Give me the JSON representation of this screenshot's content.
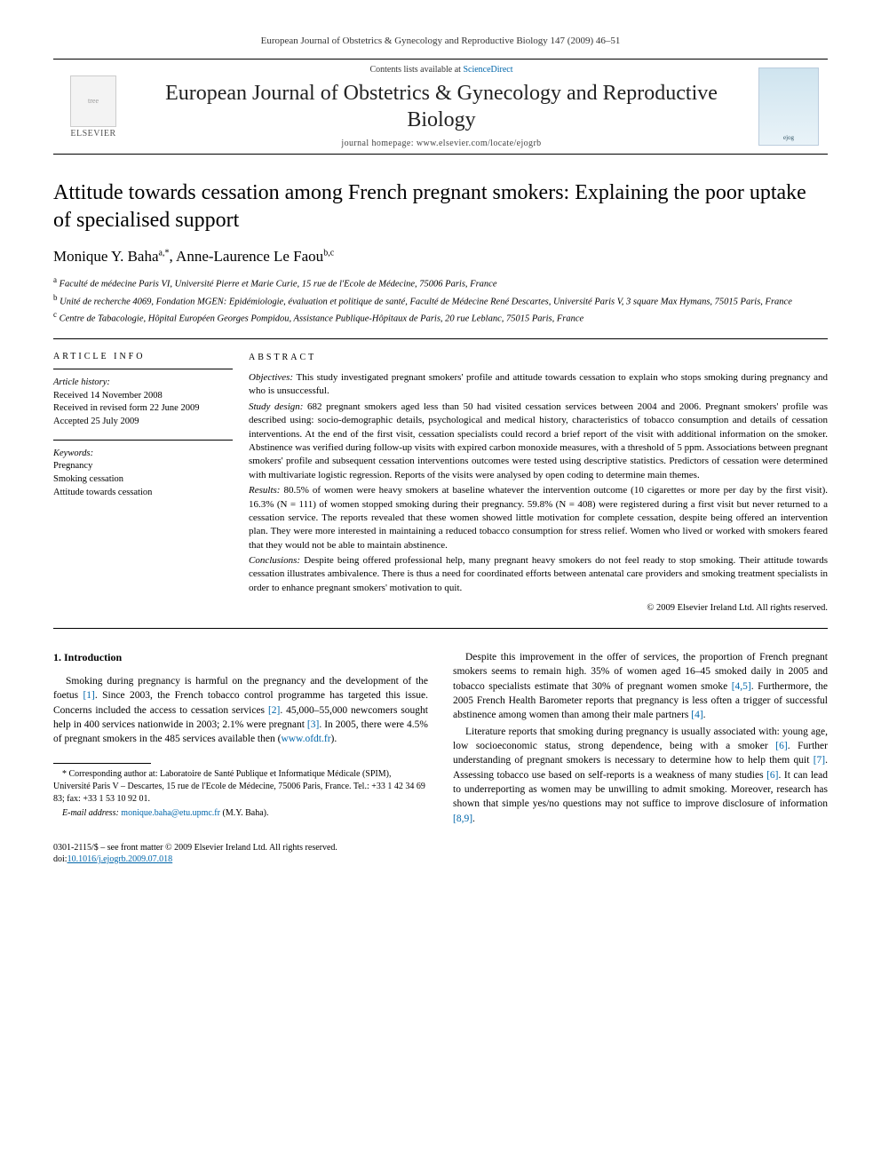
{
  "running_header": "European Journal of Obstetrics & Gynecology and Reproductive Biology 147 (2009) 46–51",
  "masthead": {
    "elsevier_label": "ELSEVIER",
    "contents_prefix": "Contents lists available at ",
    "contents_link": "ScienceDirect",
    "journal_name": "European Journal of Obstetrics & Gynecology and Reproductive Biology",
    "homepage_prefix": "journal homepage: ",
    "homepage_url": "www.elsevier.com/locate/ejogrb",
    "cover_caption": "ejog"
  },
  "title": "Attitude towards cessation among French pregnant smokers: Explaining the poor uptake of specialised support",
  "authors_html_parts": {
    "a1_name": "Monique Y. Baha",
    "a1_sup": "a,*",
    "sep": ", ",
    "a2_name": "Anne-Laurence Le Faou",
    "a2_sup": "b,c"
  },
  "affiliations": [
    {
      "sup": "a",
      "text": "Faculté de médecine Paris VI, Université Pierre et Marie Curie, 15 rue de l'Ecole de Médecine, 75006 Paris, France"
    },
    {
      "sup": "b",
      "text": "Unité de recherche 4069, Fondation MGEN: Epidémiologie, évaluation et politique de santé, Faculté de Médecine René Descartes, Université Paris V, 3 square Max Hymans, 75015 Paris, France"
    },
    {
      "sup": "c",
      "text": "Centre de Tabacologie, Hôpital Européen Georges Pompidou, Assistance Publique-Hôpitaux de Paris, 20 rue Leblanc, 75015 Paris, France"
    }
  ],
  "article_info": {
    "heading": "ARTICLE INFO",
    "history_label": "Article history:",
    "history": [
      "Received 14 November 2008",
      "Received in revised form 22 June 2009",
      "Accepted 25 July 2009"
    ],
    "keywords_label": "Keywords:",
    "keywords": [
      "Pregnancy",
      "Smoking cessation",
      "Attitude towards cessation"
    ]
  },
  "abstract": {
    "heading": "ABSTRACT",
    "segments": [
      {
        "label": "Objectives:",
        "text": "This study investigated pregnant smokers' profile and attitude towards cessation to explain who stops smoking during pregnancy and who is unsuccessful."
      },
      {
        "label": "Study design:",
        "text": "682 pregnant smokers aged less than 50 had visited cessation services between 2004 and 2006. Pregnant smokers' profile was described using: socio-demographic details, psychological and medical history, characteristics of tobacco consumption and details of cessation interventions. At the end of the first visit, cessation specialists could record a brief report of the visit with additional information on the smoker. Abstinence was verified during follow-up visits with expired carbon monoxide measures, with a threshold of 5 ppm. Associations between pregnant smokers' profile and subsequent cessation interventions outcomes were tested using descriptive statistics. Predictors of cessation were determined with multivariate logistic regression. Reports of the visits were analysed by open coding to determine main themes."
      },
      {
        "label": "Results:",
        "text": "80.5% of women were heavy smokers at baseline whatever the intervention outcome (10 cigarettes or more per day by the first visit). 16.3% (N = 111) of women stopped smoking during their pregnancy. 59.8% (N = 408) were registered during a first visit but never returned to a cessation service. The reports revealed that these women showed little motivation for complete cessation, despite being offered an intervention plan. They were more interested in maintaining a reduced tobacco consumption for stress relief. Women who lived or worked with smokers feared that they would not be able to maintain abstinence."
      },
      {
        "label": "Conclusions:",
        "text": "Despite being offered professional help, many pregnant heavy smokers do not feel ready to stop smoking. Their attitude towards cessation illustrates ambivalence. There is thus a need for coordinated efforts between antenatal care providers and smoking treatment specialists in order to enhance pregnant smokers' motivation to quit."
      }
    ],
    "copyright": "© 2009 Elsevier Ireland Ltd. All rights reserved."
  },
  "body": {
    "section1_heading": "1. Introduction",
    "p1_a": "Smoking during pregnancy is harmful on the pregnancy and the development of the foetus ",
    "p1_r1": "[1]",
    "p1_b": ". Since 2003, the French tobacco control programme has targeted this issue. Concerns included the access to cessation services ",
    "p1_r2": "[2]",
    "p1_c": ". 45,000–55,000 newcomers sought help in 400 services nationwide in 2003; 2.1% were pregnant ",
    "p1_r3": "[3]",
    "p1_d": ". In 2005, there were 4.5% of pregnant smokers in the 485 services available then (",
    "p1_url": "www.ofdt.fr",
    "p1_e": ").",
    "p2_a": "Despite this improvement in the offer of services, the proportion of French pregnant smokers seems to remain high. 35% of women aged 16–45 smoked daily in 2005 and tobacco specialists estimate that 30% of pregnant women smoke ",
    "p2_r1": "[4,5]",
    "p2_b": ". Furthermore, the 2005 French Health Barometer reports that pregnancy is less often a trigger of successful abstinence among women than among their male partners ",
    "p2_r2": "[4]",
    "p2_c": ".",
    "p3_a": "Literature reports that smoking during pregnancy is usually associated with: young age, low socioeconomic status, strong dependence, being with a smoker ",
    "p3_r1": "[6]",
    "p3_b": ". Further understanding of pregnant smokers is necessary to determine how to help them quit ",
    "p3_r2": "[7]",
    "p3_c": ". Assessing tobacco use based on self-reports is a weakness of many studies ",
    "p3_r3": "[6]",
    "p3_d": ". It can lead to underreporting as women may be unwilling to admit smoking. Moreover, research has shown that simple yes/no questions may not suffice to improve disclosure of information ",
    "p3_r4": "[8,9]",
    "p3_e": "."
  },
  "footnotes": {
    "corr_label": "* Corresponding author at: ",
    "corr_text": "Laboratoire de Santé Publique et Informatique Médicale (SPIM), Université Paris V – Descartes, 15 rue de l'Ecole de Médecine, 75006 Paris, France. Tel.: +33 1 42 34 69 83; fax: +33 1 53 10 92 01.",
    "email_label": "E-mail address: ",
    "email": "monique.baha@etu.upmc.fr",
    "email_suffix": " (M.Y. Baha)."
  },
  "footer": {
    "line1": "0301-2115/$ – see front matter © 2009 Elsevier Ireland Ltd. All rights reserved.",
    "doi_label": "doi:",
    "doi": "10.1016/j.ejogrb.2009.07.018"
  },
  "colors": {
    "link": "#0066aa",
    "rule": "#000000",
    "text": "#000000"
  }
}
